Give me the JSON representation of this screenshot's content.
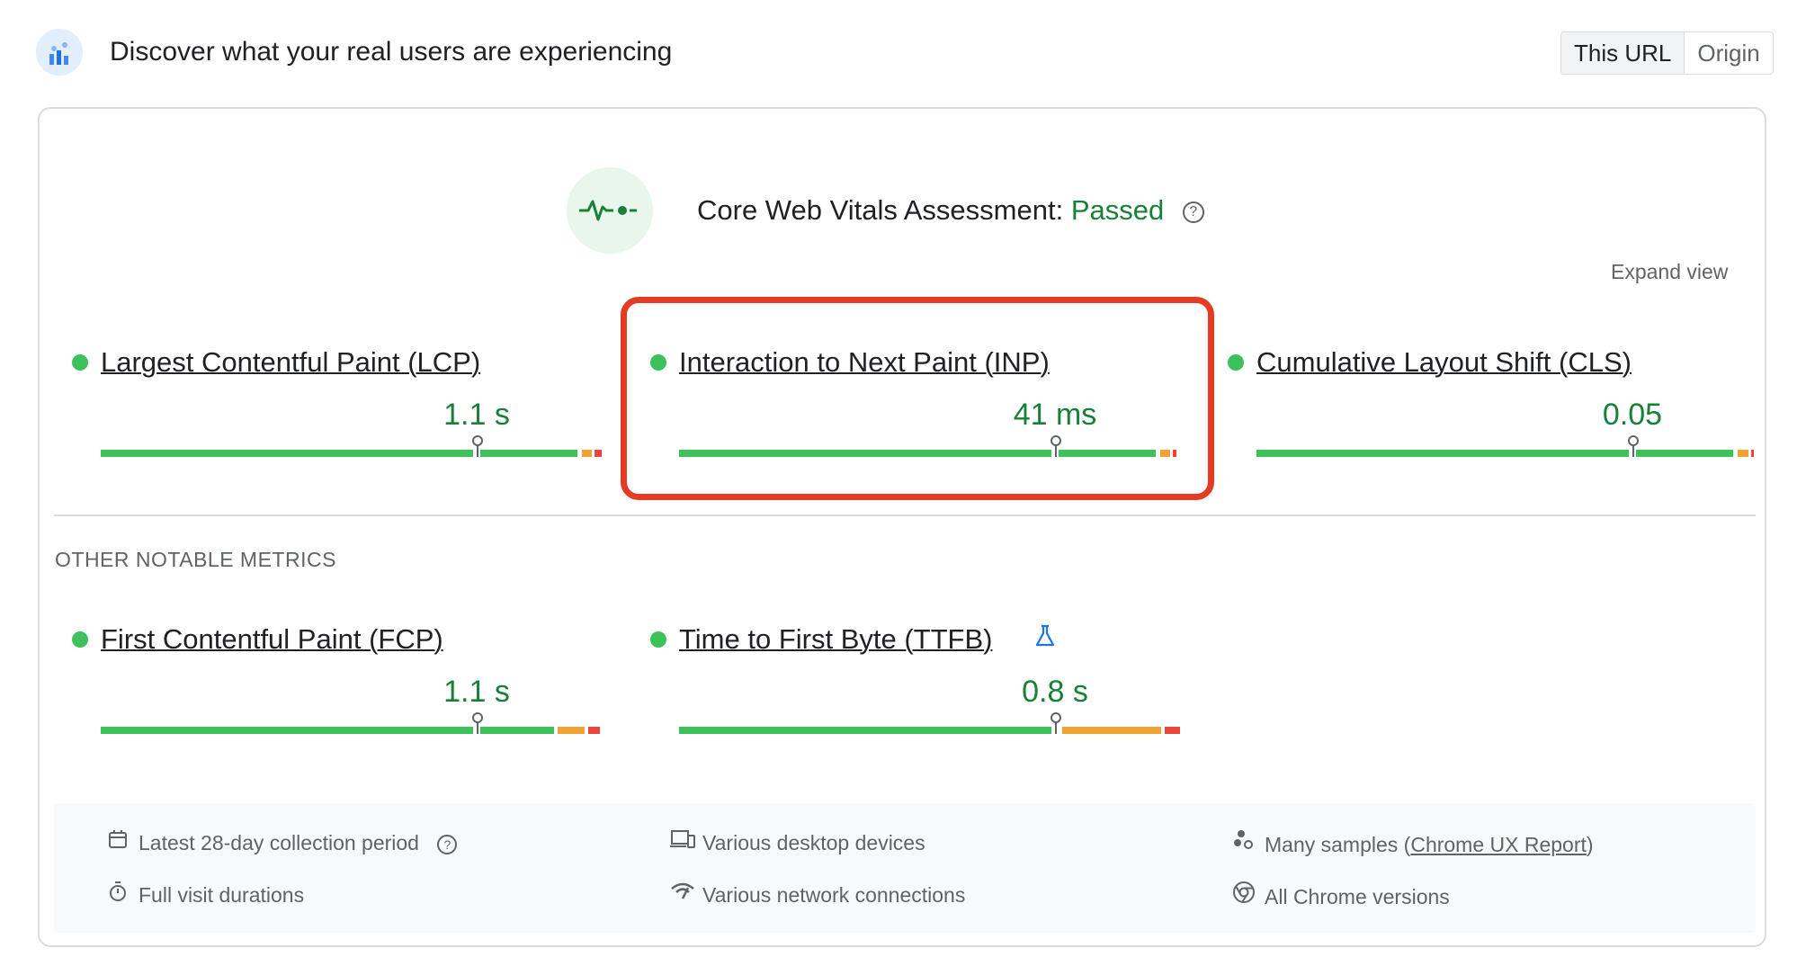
{
  "header": {
    "title": "Discover what your real users are experiencing",
    "toggle": {
      "this_url": "This URL",
      "origin": "Origin"
    }
  },
  "assessment": {
    "label": "Core Web Vitals Assessment:",
    "status": "Passed",
    "help": "?"
  },
  "expand_view": "Expand view",
  "core_metrics": [
    {
      "name": "Largest Contentful Paint (LCP)",
      "value": "1.1 s"
    },
    {
      "name": "Interaction to Next Paint (INP)",
      "value": "41 ms"
    },
    {
      "name": "Cumulative Layout Shift (CLS)",
      "value": "0.05"
    }
  ],
  "other_title": "OTHER NOTABLE METRICS",
  "other_metrics": [
    {
      "name": "First Contentful Paint (FCP)",
      "value": "1.1 s"
    },
    {
      "name": "Time to First Byte (TTFB)",
      "value": "0.8 s"
    }
  ],
  "info": {
    "collection_period": "Latest 28-day collection period",
    "visit_durations": "Full visit durations",
    "devices": "Various desktop devices",
    "network": "Various network connections",
    "samples_prefix": "Many samples (",
    "samples_link": "Chrome UX Report",
    "samples_suffix": ")",
    "chrome_versions": "All Chrome versions"
  },
  "colors": {
    "good": "#3cc15b",
    "needs_improvement": "#f1a234",
    "poor": "#e8453c",
    "highlight": "#e33b24"
  }
}
